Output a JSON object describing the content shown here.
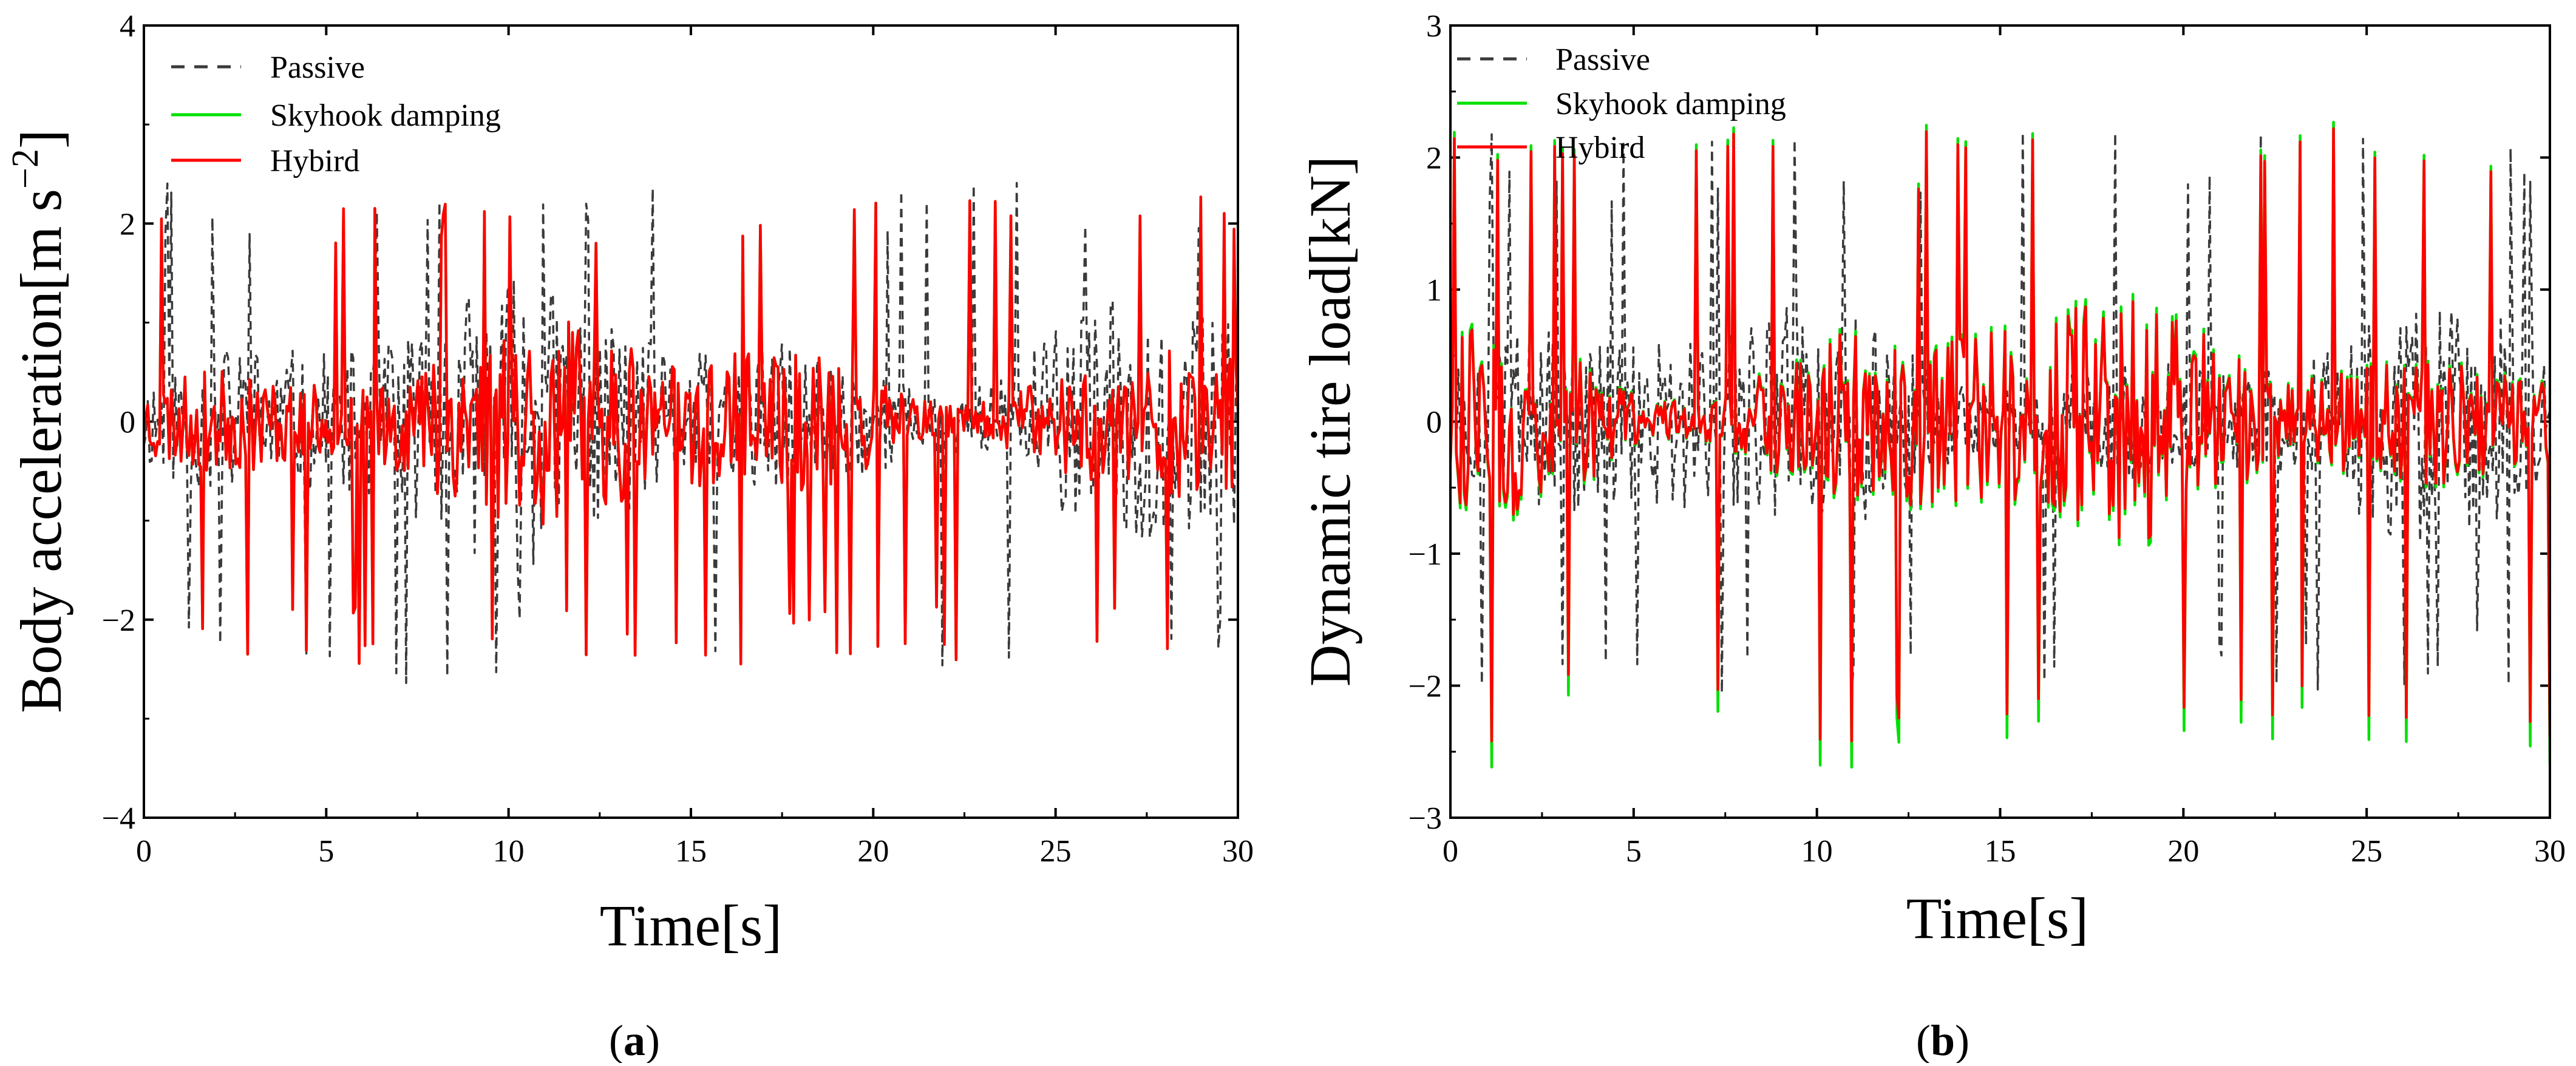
{
  "chart_data": [
    {
      "type": "line",
      "panel_label": "a",
      "xlabel": "Time[s]",
      "ylabel": "Body acceleration[m s",
      "ylabel_sup": "−2",
      "ylabel_close": "]",
      "xlim": [
        0,
        30
      ],
      "ylim": [
        -4,
        4
      ],
      "xticks": [
        0,
        5,
        10,
        15,
        20,
        25,
        30
      ],
      "yticks": [
        -4,
        -2,
        0,
        2,
        4
      ],
      "legend_placement": "top-left",
      "series": [
        {
          "name": "Passive",
          "style": "dashed",
          "color": "#3a3a3a",
          "amplitude": 1.15,
          "peak_max": 2.45,
          "peak_min": -2.65,
          "seed": 11
        },
        {
          "name": "Skyhook damping",
          "style": "solid",
          "color": "#00e000",
          "amplitude": 0.85,
          "peak_max": 2.35,
          "peak_min": -2.45,
          "seed": 23
        },
        {
          "name": "Hybird",
          "style": "solid",
          "color": "#ff0000",
          "amplitude": 0.85,
          "peak_max": 2.35,
          "peak_min": -2.45,
          "seed": 23
        }
      ]
    },
    {
      "type": "line",
      "panel_label": "b",
      "xlabel": "Time[s]",
      "ylabel": "Dynamic tire load[kN]",
      "ylabel_sup": "",
      "ylabel_close": "",
      "xlim": [
        0,
        30
      ],
      "ylim": [
        -3,
        3
      ],
      "xticks": [
        0,
        5,
        10,
        15,
        20,
        25,
        30
      ],
      "yticks": [
        -3,
        -2,
        -1,
        0,
        1,
        2,
        3
      ],
      "legend_placement": "top-left",
      "series": [
        {
          "name": "Passive",
          "style": "dashed",
          "color": "#3a3a3a",
          "amplitude": 0.75,
          "peak_max": 2.2,
          "peak_min": -2.1,
          "seed": 37
        },
        {
          "name": "Skyhook damping",
          "style": "solid",
          "color": "#00e000",
          "amplitude": 0.85,
          "peak_max": 2.3,
          "peak_min": -2.65,
          "seed": 53
        },
        {
          "name": "Hybird",
          "style": "solid",
          "color": "#ff0000",
          "amplitude": 0.8,
          "peak_max": 2.25,
          "peak_min": -2.45,
          "seed": 53
        }
      ]
    }
  ]
}
